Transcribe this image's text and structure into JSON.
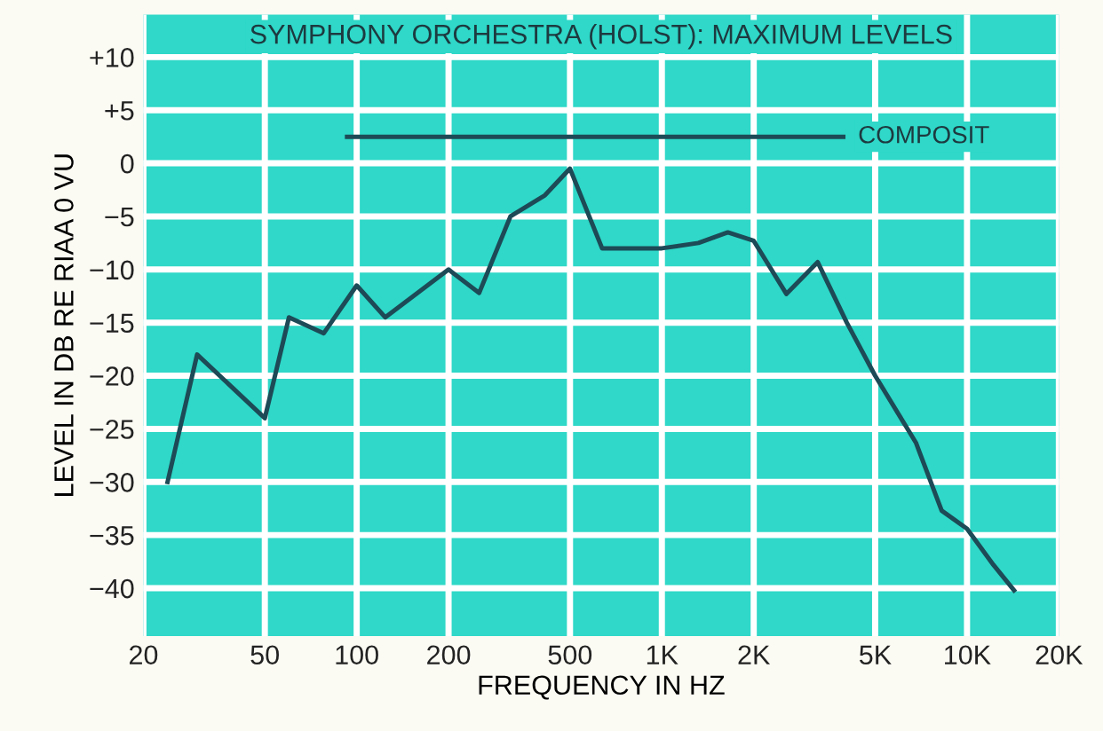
{
  "chart_data": {
    "type": "line",
    "title": "SYMPHONY ORCHESTRA (HOLST): MAXIMUM LEVELS",
    "xlabel": "FREQUENCY IN HZ",
    "ylabel": "LEVEL IN DB RE RIAA 0 VU",
    "log": "x",
    "xlim": [
      20,
      20000
    ],
    "ylim": [
      -44.5,
      14
    ],
    "xticks": [
      20,
      50,
      100,
      200,
      500,
      {
        "value": 1000,
        "label": "1K"
      },
      {
        "value": 2000,
        "label": "2K"
      },
      {
        "value": 5000,
        "label": "5K"
      },
      {
        "value": 10000,
        "label": "10K"
      },
      {
        "value": 20000,
        "label": "20K"
      }
    ],
    "yticks": [
      {
        "value": 10,
        "label": "+10"
      },
      {
        "value": 5,
        "label": "+5"
      },
      0,
      {
        "value": -5,
        "label": "−5"
      },
      {
        "value": -10,
        "label": "−10"
      },
      {
        "value": -15,
        "label": "−15"
      },
      {
        "value": -20,
        "label": "−20"
      },
      {
        "value": -25,
        "label": "−25"
      },
      {
        "value": -30,
        "label": "−30"
      },
      {
        "value": -35,
        "label": "−35"
      },
      {
        "value": -40,
        "label": "−40"
      }
    ],
    "grid": true,
    "legend": false,
    "marker": "none",
    "line_style": "solid",
    "series": [
      {
        "color": "#1d4a56",
        "x": [
          24,
          30,
          50,
          60,
          78,
          100,
          124,
          200,
          252,
          319,
          414,
          500,
          637,
          1000,
          1318,
          1645,
          2000,
          2560,
          3240,
          4036,
          5000,
          6800,
          8260,
          10000,
          12200,
          14260
        ],
        "values": [
          -30,
          -18,
          -24,
          -14.5,
          -16,
          -11.5,
          -14.5,
          -10,
          -12.2,
          -5,
          -3,
          -0.5,
          -8,
          -8,
          -7.5,
          -6.5,
          -7.3,
          -12.3,
          -9.3,
          -15,
          -20,
          -26.3,
          -32.7,
          -34.4,
          -37.8,
          -40.2
        ]
      },
      {
        "name": "COMPOSIT",
        "color": "#1d4a56",
        "x": [
          93,
          3930
        ],
        "values": [
          2.5,
          2.5
        ]
      }
    ]
  }
}
